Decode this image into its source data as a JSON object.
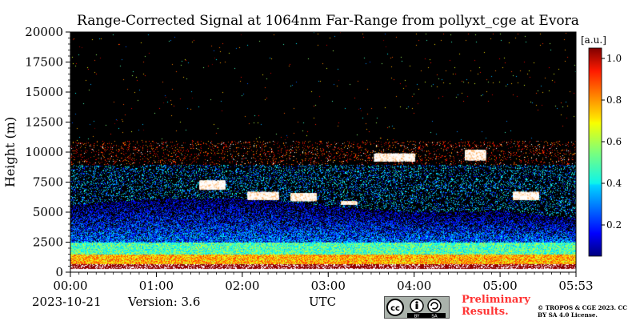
{
  "chart_data": {
    "type": "heatmap",
    "title": "Range-Corrected Signal at 1064nm Far-Range from pollyxt_cge at Evora",
    "xlabel": "UTC",
    "ylabel": "Height (m)",
    "x_ticks": [
      "00:00",
      "01:00",
      "02:00",
      "03:00",
      "04:00",
      "05:00",
      "05:53"
    ],
    "y_ticks": [
      "0",
      "2500",
      "5000",
      "7500",
      "10000",
      "12500",
      "15000",
      "17500",
      "20000"
    ],
    "xlim": [
      "00:00",
      "05:53"
    ],
    "ylim": [
      0,
      20000
    ],
    "colorbar": {
      "label": "[a.u.]",
      "ticks": [
        "0.2",
        "0.4",
        "0.6",
        "0.8",
        "1.0"
      ],
      "range": [
        0.05,
        1.05
      ],
      "colormap": "jet"
    },
    "background_color": "#000000",
    "grid": false
  },
  "footer": {
    "date": "2023-10-21",
    "version": "Version: 3.6",
    "preliminary": "Preliminary Results.",
    "copyright": "© TROPOS & CGE 2023. CC BY SA 4.0 License.",
    "license_badge": "cc-by-sa-badge",
    "license_by": "BY",
    "license_sa": "SA"
  }
}
